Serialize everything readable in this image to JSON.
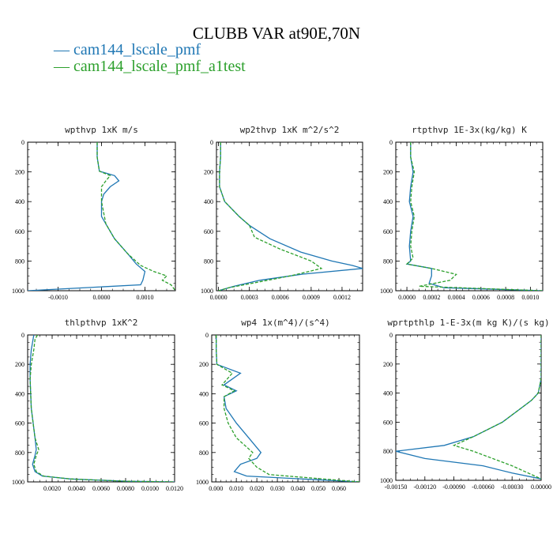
{
  "title": "CLUBB VAR at90E,70N",
  "legend": [
    {
      "label": "cam144_lscale_pmf",
      "color": "#1f77b4",
      "dash": "solid"
    },
    {
      "label": "cam144_lscale_pmf_a1test",
      "color": "#2ca02c",
      "dash": "dashed"
    }
  ],
  "chart_data": [
    {
      "type": "line",
      "title": "wpthvp   1xK m/s",
      "xlim": [
        -0.0017,
        0.0017
      ],
      "ylim": [
        0,
        1000
      ],
      "y_inverted": true,
      "xticks": [
        -0.001,
        0.0,
        0.001
      ],
      "xtick_labels": [
        "-0.0010",
        "0.0000",
        "0.0010"
      ],
      "yticks": [
        0,
        200,
        400,
        600,
        800,
        1000
      ],
      "ytick_labels": [
        "0",
        "200",
        "400",
        "600",
        "800",
        "1000"
      ],
      "series": [
        {
          "name": "cam144_lscale_pmf",
          "x": [
            -0.0001,
            -0.0001,
            -5e-05,
            0.0003,
            0.0004,
            0.0002,
            5e-05,
            0.0,
            0.0,
            0.0001,
            0.0003,
            0.0006,
            0.0008,
            0.001,
            0.00095,
            0.0009,
            -0.0017
          ],
          "y": [
            0,
            100,
            195,
            225,
            260,
            300,
            350,
            400,
            500,
            550,
            650,
            750,
            820,
            870,
            930,
            960,
            1000
          ]
        },
        {
          "name": "cam144_lscale_pmf_a1test",
          "x": [
            -0.0001,
            -0.0001,
            -5e-05,
            0.0002,
            0.0001,
            0.0,
            0.0,
            0.0001,
            0.0003,
            0.0006,
            0.0009,
            0.0012,
            0.0015,
            0.0014,
            0.0016,
            0.0017
          ],
          "y": [
            0,
            100,
            195,
            225,
            260,
            300,
            400,
            550,
            650,
            750,
            830,
            870,
            900,
            930,
            960,
            1000
          ]
        }
      ]
    },
    {
      "type": "line",
      "title": "wp2thvp   1xK m^2/s^2",
      "xlim": [
        -2e-05,
        0.0014
      ],
      "ylim": [
        0,
        1000
      ],
      "y_inverted": true,
      "xticks": [
        0.0,
        0.0003,
        0.0006,
        0.0009,
        0.0012
      ],
      "xtick_labels": [
        "0.0000",
        "0.0003",
        "0.0006",
        "0.0009",
        "0.0012"
      ],
      "yticks": [
        0,
        200,
        400,
        600,
        800,
        1000
      ],
      "ytick_labels": [
        "0",
        "200",
        "400",
        "600",
        "800",
        "1000"
      ],
      "series": [
        {
          "name": "cam144_lscale_pmf",
          "x": [
            2e-05,
            2e-05,
            1e-05,
            1e-05,
            6e-05,
            0.0002,
            0.0003,
            0.0005,
            0.0008,
            0.0011,
            0.0013,
            0.0014,
            0.0008,
            0.0004,
            0.00015,
            0.0
          ],
          "y": [
            0,
            100,
            200,
            300,
            400,
            500,
            560,
            650,
            740,
            800,
            830,
            850,
            890,
            930,
            970,
            1000
          ]
        },
        {
          "name": "cam144_lscale_pmf_a1test",
          "x": [
            2e-05,
            2e-05,
            1e-05,
            1e-05,
            6e-05,
            0.0002,
            0.0003,
            0.00035,
            0.0006,
            0.0009,
            0.001,
            0.0007,
            0.0004,
            0.0001,
            0.0
          ],
          "y": [
            0,
            100,
            200,
            300,
            400,
            500,
            560,
            640,
            720,
            800,
            850,
            900,
            940,
            980,
            1000
          ]
        }
      ]
    },
    {
      "type": "line",
      "title": "rtpthvp   1E-3x(kg/kg) K",
      "xlim": [
        -9e-05,
        0.0011
      ],
      "ylim": [
        0,
        1000
      ],
      "y_inverted": true,
      "xticks": [
        0.0,
        0.0002,
        0.0004,
        0.0006,
        0.0008,
        0.001
      ],
      "xtick_labels": [
        "0.0000",
        "0.0002",
        "0.0004",
        "0.0006",
        "0.0008",
        "0.0010"
      ],
      "yticks": [
        0,
        200,
        400,
        600,
        800,
        1000
      ],
      "ytick_labels": [
        "0",
        "200",
        "400",
        "600",
        "800",
        "1000"
      ],
      "series": [
        {
          "name": "cam144_lscale_pmf",
          "x": [
            3e-05,
            3e-05,
            5e-05,
            3e-05,
            2e-05,
            5e-05,
            3e-05,
            2e-05,
            3e-05,
            0.0,
            0.0002,
            0.0002,
            0.00018,
            0.0003,
            0.0011
          ],
          "y": [
            0,
            100,
            200,
            300,
            400,
            500,
            600,
            700,
            800,
            820,
            850,
            900,
            950,
            980,
            1000
          ]
        },
        {
          "name": "cam144_lscale_pmf_a1test",
          "x": [
            3e-05,
            3e-05,
            6e-05,
            4e-05,
            3e-05,
            6e-05,
            4e-05,
            3e-05,
            5e-05,
            0.0,
            0.0002,
            0.0004,
            0.00035,
            0.0001,
            0.0011
          ],
          "y": [
            0,
            100,
            200,
            300,
            400,
            500,
            600,
            700,
            780,
            820,
            850,
            890,
            930,
            970,
            1000
          ]
        }
      ]
    },
    {
      "type": "line",
      "title": "thlpthvp   1xK^2",
      "xlim": [
        0.0,
        0.012
      ],
      "ylim": [
        0,
        1000
      ],
      "y_inverted": true,
      "xticks": [
        0.002,
        0.004,
        0.006,
        0.008,
        0.01,
        0.012
      ],
      "xtick_labels": [
        "0.0020",
        "0.0040",
        "0.0060",
        "0.0080",
        "0.0100",
        "0.0120"
      ],
      "yticks": [
        0,
        200,
        400,
        600,
        800,
        1000
      ],
      "ytick_labels": [
        "0",
        "200",
        "400",
        "600",
        "800",
        "1000"
      ],
      "series": [
        {
          "name": "cam144_lscale_pmf",
          "x": [
            0.0005,
            0.0004,
            0.0003,
            0.0002,
            0.0002,
            0.0003,
            0.0006,
            0.0007,
            0.0006,
            0.0004,
            0.0006,
            0.0012,
            0.0035,
            0.008,
            0.012
          ],
          "y": [
            0,
            50,
            100,
            200,
            300,
            500,
            700,
            780,
            820,
            880,
            930,
            960,
            980,
            995,
            1000
          ]
        },
        {
          "name": "cam144_lscale_pmf_a1test",
          "x": [
            0.0008,
            0.0006,
            0.0005,
            0.0003,
            0.0002,
            0.0003,
            0.0006,
            0.0009,
            0.0007,
            0.0005,
            0.0007,
            0.0013,
            0.0035,
            0.008,
            0.012
          ],
          "y": [
            0,
            30,
            100,
            200,
            300,
            500,
            700,
            780,
            820,
            880,
            930,
            960,
            980,
            995,
            1000
          ]
        }
      ]
    },
    {
      "type": "line",
      "title": "wp4   1x(m^4)/(s^4)",
      "xlim": [
        -0.002,
        0.07
      ],
      "ylim": [
        0,
        1000
      ],
      "y_inverted": true,
      "xticks": [
        0.0,
        0.01,
        0.02,
        0.03,
        0.04,
        0.05,
        0.06
      ],
      "xtick_labels": [
        "0.000",
        "0.010",
        "0.020",
        "0.030",
        "0.040",
        "0.050",
        "0.060"
      ],
      "yticks": [
        0,
        200,
        400,
        600,
        800,
        1000
      ],
      "ytick_labels": [
        "0",
        "200",
        "400",
        "600",
        "800",
        "1000"
      ],
      "series": [
        {
          "name": "cam144_lscale_pmf",
          "x": [
            0.0002,
            0.0002,
            0.0005,
            0.012,
            0.004,
            0.01,
            0.004,
            0.005,
            0.01,
            0.016,
            0.022,
            0.02,
            0.012,
            0.009,
            0.015,
            0.07
          ],
          "y": [
            0,
            100,
            200,
            260,
            340,
            380,
            420,
            500,
            600,
            700,
            800,
            840,
            880,
            930,
            960,
            1000
          ]
        },
        {
          "name": "cam144_lscale_pmf_a1test",
          "x": [
            0.0002,
            0.0002,
            0.0005,
            0.008,
            0.003,
            0.009,
            0.004,
            0.004,
            0.006,
            0.01,
            0.018,
            0.016,
            0.02,
            0.026,
            0.07
          ],
          "y": [
            0,
            100,
            200,
            260,
            340,
            380,
            420,
            500,
            600,
            700,
            800,
            840,
            900,
            950,
            1000
          ]
        }
      ]
    },
    {
      "type": "line",
      "title": "wprtpthlp   1-E-3x(m kg K)/(s kg)",
      "xlim": [
        -0.0015,
        0.0
      ],
      "ylim": [
        0,
        1000
      ],
      "y_inverted": true,
      "xticks": [
        -0.0015,
        -0.0012,
        -0.0009,
        -0.0006,
        -0.0003,
        0.0
      ],
      "xtick_labels": [
        "-0.00150",
        "-0.00120",
        "-0.00090",
        "-0.00060",
        "-0.00030",
        "0.00000"
      ],
      "yticks": [
        0,
        200,
        400,
        600,
        800,
        1000
      ],
      "ytick_labels": [
        "0",
        "200",
        "400",
        "600",
        "800",
        "1000"
      ],
      "series": [
        {
          "name": "cam144_lscale_pmf",
          "x": [
            0.0,
            0.0,
            -3e-05,
            -0.0001,
            -0.0002,
            -0.0004,
            -0.0007,
            -0.001,
            -0.0015,
            -0.0012,
            -0.0006,
            -0.0003,
            0.0
          ],
          "y": [
            0,
            300,
            400,
            450,
            500,
            600,
            700,
            760,
            800,
            850,
            900,
            950,
            990
          ]
        },
        {
          "name": "cam144_lscale_pmf_a1test",
          "x": [
            0.0,
            0.0,
            -3e-05,
            -0.0001,
            -0.0002,
            -0.0004,
            -0.0007,
            -0.0009,
            -0.0007,
            -0.0003,
            0.0
          ],
          "y": [
            0,
            300,
            400,
            450,
            500,
            600,
            700,
            760,
            800,
            900,
            990
          ]
        }
      ]
    }
  ]
}
